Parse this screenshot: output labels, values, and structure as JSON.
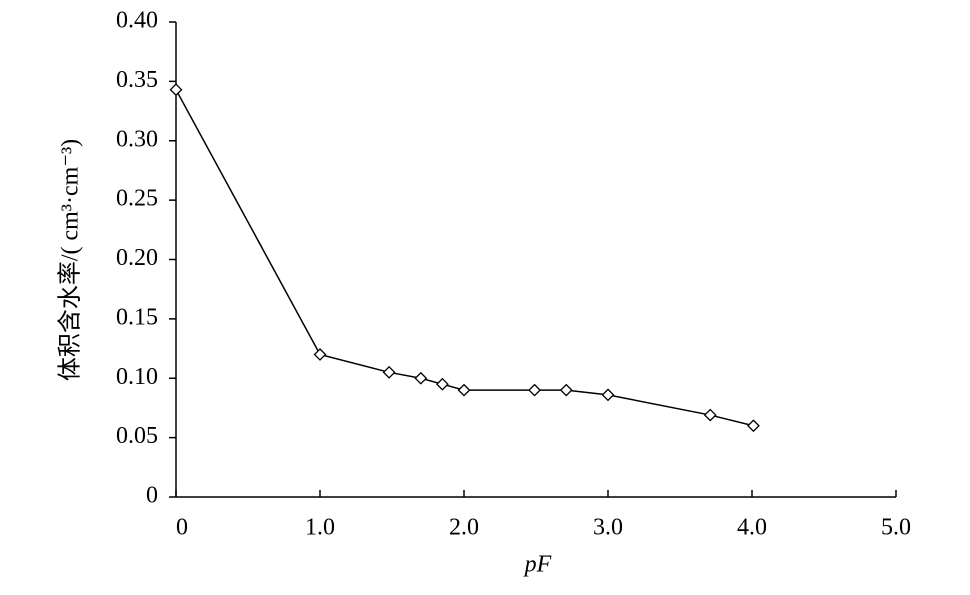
{
  "chart_data": {
    "type": "line",
    "xlabel": "pF",
    "ylabel": "体积含水率/( cm³·cm⁻³)",
    "x": [
      0,
      1.0,
      1.48,
      1.7,
      1.85,
      2.0,
      2.49,
      2.71,
      3.0,
      3.71,
      4.01
    ],
    "series": [
      {
        "name": "体积含水率",
        "color": "#000000",
        "values": [
          0.343,
          0.12,
          0.105,
          0.1,
          0.095,
          0.09,
          0.09,
          0.09,
          0.086,
          0.069,
          0.06
        ]
      }
    ],
    "xlim": [
      0,
      5
    ],
    "xticks": [
      0,
      {
        "value": 1,
        "label": "1.0"
      },
      {
        "value": 2,
        "label": "2.0"
      },
      {
        "value": 3,
        "label": "3.0"
      },
      {
        "value": 4,
        "label": "4.0"
      },
      {
        "value": 5,
        "label": "5.0"
      }
    ],
    "ylim": [
      0,
      0.4
    ],
    "yticks": [
      0,
      0.05,
      {
        "value": 0.1,
        "label": "0.10"
      },
      0.15,
      {
        "value": 0.2,
        "label": "0.20"
      },
      0.25,
      {
        "value": 0.3,
        "label": "0.30"
      },
      0.35,
      {
        "value": 0.4,
        "label": "0.40"
      }
    ],
    "grid": false,
    "marker": "diamond"
  }
}
